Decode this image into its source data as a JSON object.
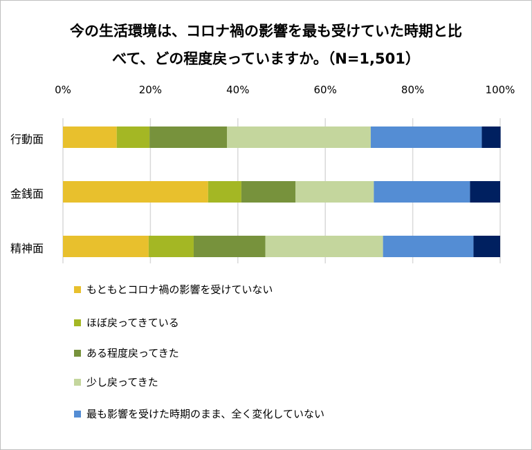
{
  "chart_data": {
    "type": "bar",
    "orientation": "horizontal",
    "stacked": "percent",
    "title_line1": "今の生活環境は、コロナ禍の影響を最も受けていた時期と比",
    "title_line2": "べて、どの程度戻っていますか。（N=1,501）",
    "x_ticks": [
      "0%",
      "20%",
      "40%",
      "60%",
      "80%",
      "100%"
    ],
    "xlim": [
      0,
      100
    ],
    "grid": true,
    "legend_position": "bottom",
    "categories": [
      "行動面",
      "金銭面",
      "精神面"
    ],
    "series": [
      {
        "name": "もともとコロナ禍の影響を受けていない",
        "color": "#E8C02D",
        "values": [
          12.3,
          33.2,
          19.6
        ]
      },
      {
        "name": "ほぼ戻ってきている",
        "color": "#A4B724",
        "values": [
          7.5,
          7.6,
          10.3
        ]
      },
      {
        "name": "ある程度戻ってきた",
        "color": "#77923C",
        "values": [
          17.7,
          12.4,
          16.4
        ]
      },
      {
        "name": "少し戻ってきた",
        "color": "#C4D69D",
        "values": [
          32.9,
          17.9,
          26.9
        ]
      },
      {
        "name": "最も影響を受けた時期のまま、全く変化していない",
        "color": "#548DD4",
        "values": [
          25.4,
          22.0,
          20.7
        ]
      },
      {
        "name": "",
        "color": "#002060",
        "values": [
          4.3,
          6.9,
          6.1
        ]
      }
    ]
  }
}
